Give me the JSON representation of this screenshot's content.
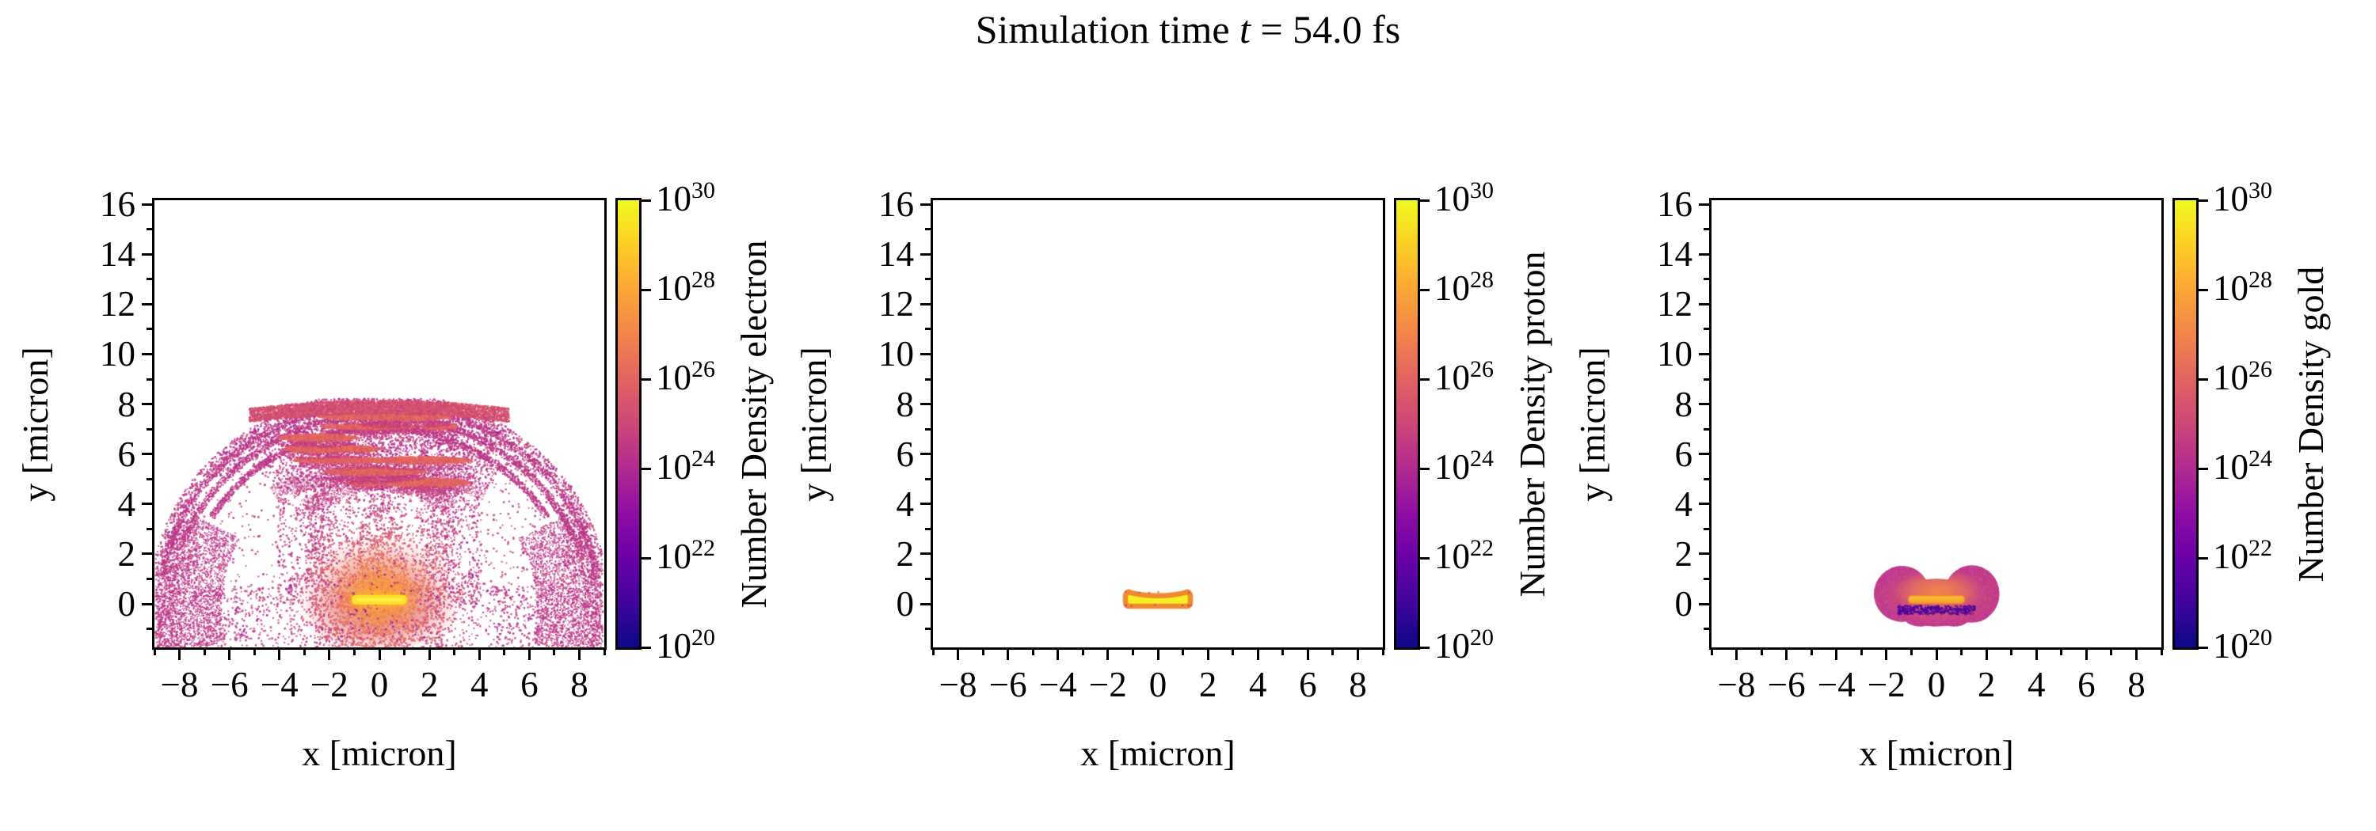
{
  "figure": {
    "title": {
      "prefix": "Simulation time ",
      "var": "t",
      "suffix": " = 54.0 fs"
    },
    "background": "#ffffff"
  },
  "colormap": {
    "name": "plasma",
    "stops": [
      "#0d0887",
      "#41049d",
      "#6a00a8",
      "#8f0da4",
      "#b12a90",
      "#cc4778",
      "#e16462",
      "#f2844b",
      "#fca636",
      "#fcce25",
      "#f0f921"
    ]
  },
  "axes": {
    "xlabel": "x [micron]",
    "ylabel": "y [micron]",
    "xlim": [
      -9,
      9
    ],
    "ylim": [
      -1.74,
      16.16
    ],
    "x_major_values": [
      -8,
      -6,
      -4,
      -2,
      0,
      2,
      4,
      6,
      8
    ],
    "x_major_labels": [
      "−8",
      "−6",
      "−4",
      "−2",
      "0",
      "2",
      "4",
      "6",
      "8"
    ],
    "x_minor_values": [
      -9,
      -7,
      -5,
      -3,
      -1,
      1,
      3,
      5,
      7,
      9
    ],
    "y_major_values": [
      0,
      2,
      4,
      6,
      8,
      10,
      12,
      14,
      16
    ],
    "y_major_labels": [
      "0",
      "2",
      "4",
      "6",
      "8",
      "10",
      "12",
      "14",
      "16"
    ],
    "y_minor_values": [
      -1,
      1,
      3,
      5,
      7,
      9,
      11,
      13,
      15
    ]
  },
  "colorbar": {
    "base": "10",
    "tick_exponents": [
      30,
      28,
      26,
      24,
      22,
      20
    ],
    "min_exponent": 20,
    "max_exponent": 30
  },
  "chart_data": [
    {
      "type": "heatmap",
      "species": "electron",
      "colorbar_label": "Number Density electron",
      "xlabel": "x [micron]",
      "ylabel": "y [micron]",
      "xlim": [
        -9,
        9
      ],
      "ylim": [
        -1.74,
        16.16
      ],
      "scale": "log",
      "value_range": [
        "1e20",
        "1e30"
      ],
      "colormap": "plasma",
      "content": {
        "target_bar": {
          "x": [
            -1.1,
            1.1
          ],
          "y": [
            -0.02,
            0.36
          ],
          "peak_exponent": 30
        },
        "core_glow": {
          "cx": 0,
          "cy": 0.3,
          "rx": 3.4,
          "ry": 2.6,
          "exponent_range": [
            26,
            29
          ]
        },
        "dome": {
          "cx": 0,
          "cy": 0.1,
          "rx": 8.9,
          "ry": 8.15,
          "top": 8.15,
          "exponent_range": [
            23,
            25
          ]
        },
        "voids": {
          "x_abs": [
            4.1,
            7.3
          ],
          "y": [
            0.7,
            5.1
          ]
        },
        "striations": {
          "rows": [
            4.85,
            5.3,
            5.75,
            6.2,
            6.65,
            7.1,
            7.5
          ],
          "x_extent": 4.6,
          "exponent_range": [
            24,
            26
          ]
        },
        "rim_band": {
          "y": [
            7.45,
            8.15
          ],
          "x_extent": 5.2
        },
        "shell_arc_radii": [
          8.8,
          8.3,
          7.75
        ]
      }
    },
    {
      "type": "heatmap",
      "species": "proton",
      "colorbar_label": "Number Density proton",
      "xlabel": "x [micron]",
      "ylabel": "y [micron]",
      "xlim": [
        -9,
        9
      ],
      "ylim": [
        -1.74,
        16.16
      ],
      "scale": "log",
      "value_range": [
        "1e20",
        "1e30"
      ],
      "colormap": "plasma",
      "content": {
        "slab": {
          "x": [
            -1.3,
            1.3
          ],
          "y": [
            -0.09,
            0.46
          ],
          "top_mid": 0.33,
          "peak_exponent": 30,
          "rim_exponent": 28
        }
      }
    },
    {
      "type": "heatmap",
      "species": "gold",
      "colorbar_label": "Number Density gold",
      "xlabel": "x [micron]",
      "ylabel": "y [micron]",
      "xlim": [
        -9,
        9
      ],
      "ylim": [
        -1.74,
        16.16
      ],
      "scale": "log",
      "value_range": [
        "1e20",
        "1e30"
      ],
      "colormap": "plasma",
      "content": {
        "blob_lobes": [
          [
            -1.38,
            0.4,
            1.12,
            1.12
          ],
          [
            1.42,
            0.4,
            1.1,
            1.15
          ],
          [
            0,
            0.05,
            1.95,
            0.95
          ],
          [
            -0.65,
            -0.35,
            0.75,
            0.55
          ],
          [
            0.7,
            -0.35,
            0.75,
            0.55
          ]
        ],
        "blob_exponent_range": [
          24,
          25
        ],
        "bar": {
          "x": [
            -1.12,
            1.12
          ],
          "y": [
            0.03,
            0.33
          ],
          "peak_exponent": 29
        },
        "dark_strip": {
          "x": [
            -1.55,
            1.55
          ],
          "y": [
            -0.42,
            -0.06
          ],
          "exponent_range": [
            20,
            22
          ]
        }
      }
    }
  ]
}
